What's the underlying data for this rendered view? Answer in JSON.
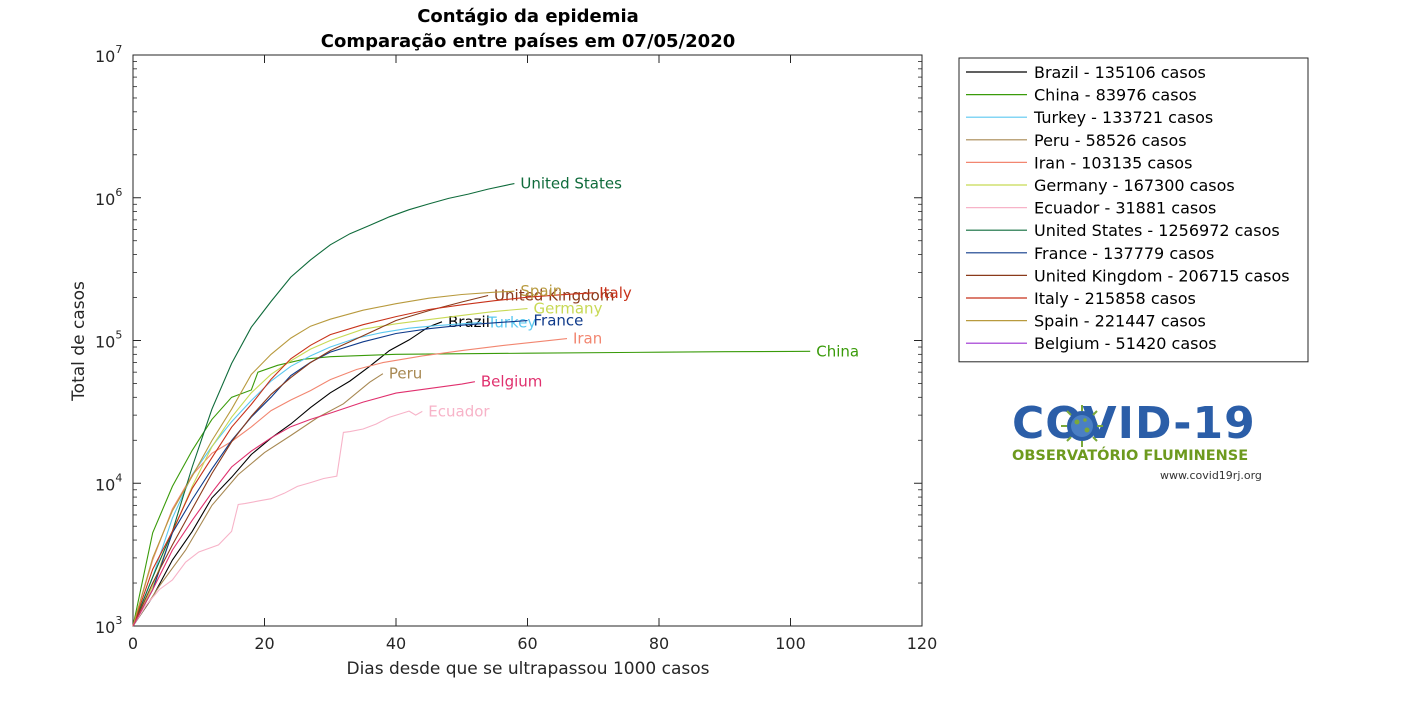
{
  "chart_data": {
    "type": "line",
    "title": "Contágio da epidemia",
    "subtitle": "Comparação entre países em 07/05/2020",
    "xlabel": "Dias desde que se ultrapassou 1000 casos",
    "ylabel": "Total de casos",
    "xlim": [
      0,
      120
    ],
    "ylim": [
      1000,
      10000000
    ],
    "yscale": "log",
    "xticks": [
      0,
      20,
      40,
      60,
      80,
      100,
      120
    ],
    "yticks": [
      {
        "value": 1000,
        "base": "10",
        "exp": "3"
      },
      {
        "value": 10000,
        "base": "10",
        "exp": "4"
      },
      {
        "value": 100000,
        "base": "10",
        "exp": "5"
      },
      {
        "value": 1000000,
        "base": "10",
        "exp": "6"
      },
      {
        "value": 10000000,
        "base": "10",
        "exp": "7"
      }
    ],
    "grid": false,
    "legend_position": "outside-right",
    "series": [
      {
        "name": "Brazil - 135106 casos",
        "label": "Brazil",
        "color": "#000000",
        "label_color": "#000000",
        "x": [
          0,
          3,
          6,
          9,
          12,
          15,
          18,
          21,
          24,
          27,
          30,
          33,
          36,
          39,
          42,
          45,
          47
        ],
        "y": [
          1000,
          1600,
          2900,
          4600,
          7900,
          11000,
          15900,
          20700,
          26000,
          33900,
          43000,
          52000,
          66000,
          85000,
          101000,
          125000,
          135106
        ]
      },
      {
        "name": "China - 83976 casos",
        "label": "China",
        "color": "#3a9b0a",
        "label_color": "#3a9b0a",
        "x": [
          0,
          3,
          6,
          9,
          12,
          15,
          18,
          19,
          22,
          26,
          30,
          40,
          60,
          80,
          90,
          100,
          103
        ],
        "y": [
          1000,
          4500,
          9500,
          17000,
          28000,
          40000,
          45000,
          60000,
          67000,
          74000,
          77000,
          80000,
          81500,
          82800,
          83500,
          83900,
          83976
        ]
      },
      {
        "name": "Turkey - 133721 casos",
        "label": "Turkey",
        "color": "#5bc8f0",
        "label_color": "#5bc8f0",
        "x": [
          0,
          3,
          6,
          9,
          12,
          15,
          18,
          21,
          24,
          27,
          30,
          34,
          38,
          42,
          46,
          50,
          53
        ],
        "y": [
          1000,
          2200,
          5700,
          11500,
          18100,
          27000,
          38000,
          52000,
          66000,
          78000,
          90000,
          104000,
          114000,
          122000,
          127000,
          131000,
          133721
        ]
      },
      {
        "name": "Peru - 58526 casos",
        "label": "Peru",
        "color": "#a78852",
        "label_color": "#a78852",
        "x": [
          0,
          4,
          8,
          12,
          16,
          20,
          24,
          28,
          32,
          36,
          38
        ],
        "y": [
          1000,
          1900,
          3400,
          7000,
          11500,
          16400,
          21600,
          28700,
          36000,
          51000,
          58526
        ]
      },
      {
        "name": "Iran - 103135 casos",
        "label": "Iran",
        "color": "#f28670",
        "label_color": "#f28670",
        "x": [
          0,
          3,
          6,
          9,
          12,
          15,
          18,
          21,
          24,
          27,
          30,
          34,
          38,
          44,
          50,
          56,
          62,
          66
        ],
        "y": [
          1000,
          2900,
          6600,
          11400,
          16200,
          19600,
          24800,
          32300,
          38300,
          44600,
          53200,
          62600,
          70000,
          78000,
          85000,
          92000,
          98600,
          103135
        ]
      },
      {
        "name": "Germany - 167300 casos",
        "label": "Germany",
        "color": "#c8d955",
        "label_color": "#c8d955",
        "x": [
          0,
          3,
          6,
          9,
          12,
          15,
          18,
          21,
          24,
          27,
          30,
          35,
          40,
          45,
          50,
          55,
          60
        ],
        "y": [
          1000,
          1900,
          4500,
          9500,
          18000,
          29000,
          43000,
          58000,
          72000,
          87000,
          100000,
          120000,
          131000,
          140000,
          150000,
          160000,
          167300
        ]
      },
      {
        "name": "Ecuador - 31881 casos",
        "label": "Ecuador",
        "color": "#f7b3c8",
        "label_color": "#f7b3c8",
        "x": [
          0,
          2,
          4,
          6,
          8,
          10,
          13,
          15,
          16,
          17,
          19,
          21,
          23,
          25,
          27,
          29,
          31,
          32,
          33,
          35,
          37,
          39,
          41,
          42,
          43,
          44
        ],
        "y": [
          1000,
          1400,
          1800,
          2100,
          2800,
          3300,
          3700,
          4600,
          7100,
          7200,
          7500,
          7800,
          8500,
          9500,
          10100,
          10800,
          11200,
          22700,
          23000,
          24000,
          26000,
          29000,
          31000,
          32000,
          30000,
          31881
        ]
      },
      {
        "name": "United States - 1256972 casos",
        "label": "United States",
        "color": "#0f6b3b",
        "label_color": "#0f6b3b",
        "x": [
          0,
          3,
          6,
          9,
          12,
          15,
          18,
          21,
          24,
          27,
          30,
          33,
          36,
          39,
          42,
          45,
          48,
          51,
          54,
          57,
          58
        ],
        "y": [
          1000,
          2200,
          4600,
          13000,
          33000,
          69000,
          124000,
          188000,
          278000,
          367000,
          468000,
          560000,
          640000,
          735000,
          825000,
          905000,
          990000,
          1060000,
          1150000,
          1230000,
          1256972
        ]
      },
      {
        "name": "France - 137779 casos",
        "label": "France",
        "color": "#0f3a8a",
        "label_color": "#0f3a8a",
        "x": [
          0,
          3,
          6,
          9,
          12,
          15,
          18,
          21,
          24,
          27,
          30,
          35,
          40,
          45,
          50,
          55,
          60
        ],
        "y": [
          1000,
          1800,
          4500,
          7700,
          12600,
          19900,
          29100,
          40100,
          56900,
          70400,
          83000,
          98000,
          112000,
          121000,
          128000,
          133000,
          137779
        ]
      },
      {
        "name": "United Kingdom - 206715 casos",
        "label": "United Kingdom",
        "color": "#8a3a1a",
        "label_color": "#8a3a1a",
        "x": [
          0,
          3,
          6,
          9,
          12,
          15,
          18,
          21,
          24,
          27,
          30,
          35,
          40,
          45,
          50,
          54
        ],
        "y": [
          1000,
          2000,
          3700,
          6600,
          11700,
          19500,
          29500,
          42000,
          55000,
          70000,
          85000,
          108000,
          138000,
          162000,
          186000,
          206715
        ]
      },
      {
        "name": "Italy - 215858 casos",
        "label": "Italy",
        "color": "#c8321a",
        "label_color": "#c8321a",
        "x": [
          0,
          3,
          6,
          9,
          12,
          15,
          18,
          21,
          24,
          27,
          30,
          35,
          40,
          45,
          50,
          55,
          60,
          65,
          70
        ],
        "y": [
          1000,
          2500,
          4600,
          9200,
          15100,
          24700,
          35700,
          53600,
          74400,
          92500,
          110000,
          129000,
          147000,
          165000,
          178000,
          190000,
          201000,
          209000,
          215858
        ]
      },
      {
        "name": "Spain - 221447 casos",
        "label": "Spain",
        "color": "#b89a3e",
        "label_color": "#b89a3e",
        "x": [
          0,
          3,
          6,
          9,
          12,
          15,
          18,
          21,
          24,
          27,
          30,
          35,
          40,
          45,
          50,
          55,
          58
        ],
        "y": [
          1000,
          3000,
          6400,
          11200,
          19900,
          33000,
          57800,
          80000,
          104000,
          126000,
          141000,
          163000,
          181000,
          198000,
          210000,
          218000,
          221447
        ]
      },
      {
        "name": "Belgium - 51420 casos",
        "label": "Belgium",
        "color": "#e0306e",
        "label_color": "#e0306e",
        "legend_color": "#9b2fd0",
        "x": [
          0,
          3,
          6,
          9,
          12,
          15,
          18,
          21,
          24,
          27,
          30,
          35,
          40,
          45,
          50,
          52
        ],
        "y": [
          1000,
          1800,
          3400,
          5500,
          8600,
          13000,
          16800,
          20800,
          24900,
          28000,
          31000,
          37000,
          42800,
          46000,
          49500,
          51420
        ]
      }
    ]
  },
  "logo": {
    "main_text": "COVID-19",
    "subtitle": "OBSERVATÓRIO FLUMINENSE",
    "url": "www.covid19rj.org"
  }
}
